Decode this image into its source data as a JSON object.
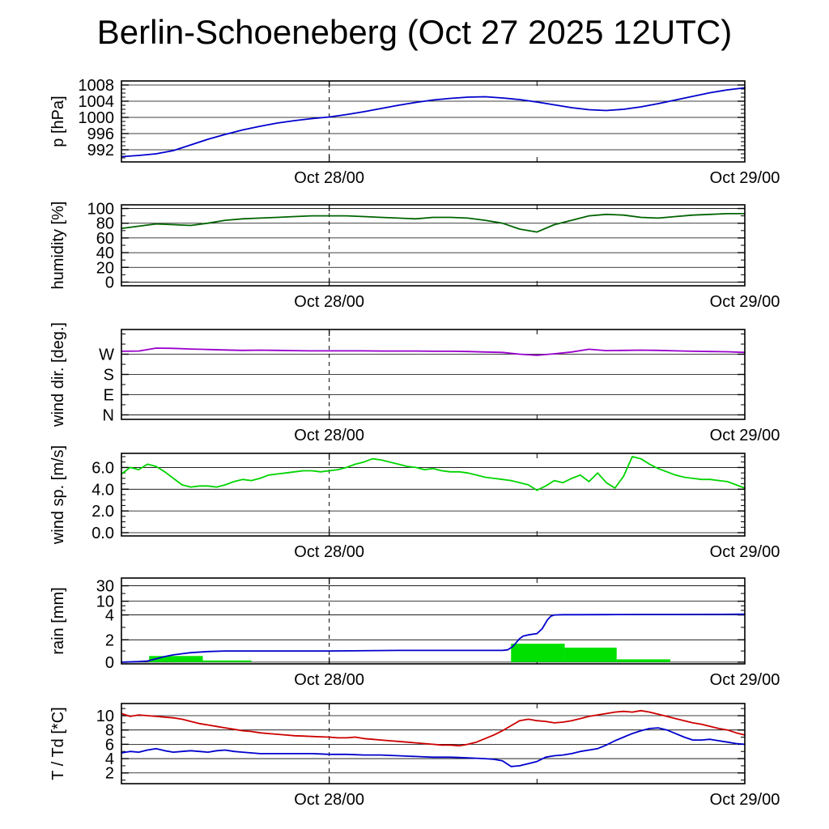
{
  "title": "Berlin-Schoeneberg (Oct 27 2025 12UTC)",
  "chart_data": {
    "type": "line",
    "station": "Berlin-Schoeneberg",
    "run_label": "Oct 27 2025 12UTC",
    "x_axis": {
      "range": [
        0,
        36
      ],
      "unit": "hours since Oct 27 2025 12UTC",
      "ticks": [
        {
          "value": 12,
          "label": "Oct 28/00",
          "dashed_line": true
        },
        {
          "value": 36,
          "label": "Oct 29/00"
        }
      ],
      "minor_ticks": [
        24
      ]
    },
    "panels": [
      {
        "id": "pressure",
        "ylabel": "p [hPa]",
        "ylim": [
          989,
          1009
        ],
        "yticks": [
          {
            "value": 992,
            "label": "992"
          },
          {
            "value": 996,
            "label": "996"
          },
          {
            "value": 1000,
            "label": "1000"
          },
          {
            "value": 1004,
            "label": "1004"
          },
          {
            "value": 1008,
            "label": "1008"
          }
        ],
        "yminor_step": 1,
        "series": [
          {
            "name": "pressure",
            "color": "#0000cd",
            "x_start": 0,
            "x_step": 1,
            "values": [
              990.3,
              990.6,
              991.0,
              991.8,
              993.2,
              994.6,
              995.8,
              996.9,
              997.8,
              998.6,
              999.2,
              999.7,
              1000.1,
              1000.7,
              1001.4,
              1002.2,
              1003.0,
              1003.7,
              1004.3,
              1004.7,
              1005.0,
              1005.1,
              1004.8,
              1004.4,
              1003.8,
              1003.1,
              1002.4,
              1001.9,
              1001.7,
              1002.0,
              1002.6,
              1003.4,
              1004.3,
              1005.2,
              1006.1,
              1006.8,
              1007.3
            ]
          }
        ]
      },
      {
        "id": "humidity",
        "ylabel": "humidity [%]",
        "ylim": [
          -5,
          105
        ],
        "yticks": [
          {
            "value": 0,
            "label": "0"
          },
          {
            "value": 20,
            "label": "20"
          },
          {
            "value": 40,
            "label": "40"
          },
          {
            "value": 60,
            "label": "60"
          },
          {
            "value": 80,
            "label": "80"
          },
          {
            "value": 100,
            "label": "100"
          }
        ],
        "yminor_step": 10,
        "series": [
          {
            "name": "humidity",
            "color": "#006400",
            "x_start": 0,
            "x_step": 1,
            "values": [
              73,
              76,
              79,
              78,
              77,
              80,
              84,
              86,
              87,
              88,
              89,
              90,
              90,
              90,
              89,
              88,
              87,
              86,
              88,
              88,
              87,
              84,
              80,
              72,
              68,
              78,
              84,
              90,
              92,
              91,
              88,
              87,
              89,
              91,
              92,
              93,
              93
            ]
          }
        ]
      },
      {
        "id": "wind_direction",
        "ylabel": "wind dir. [deg.]",
        "ylim": [
          -20,
          380
        ],
        "yticks": [
          {
            "value": 0,
            "label": "N"
          },
          {
            "value": 90,
            "label": "E"
          },
          {
            "value": 180,
            "label": "S"
          },
          {
            "value": 270,
            "label": "W"
          }
        ],
        "yminor_step": 45,
        "series": [
          {
            "name": "wind_direction",
            "color": "#9900cc",
            "x_start": 0,
            "x_step": 1,
            "values": [
              283,
              284,
              297,
              296,
              293,
              291,
              289,
              287,
              288,
              287,
              286,
              285,
              285,
              285,
              285,
              284,
              284,
              284,
              283,
              283,
              282,
              280,
              278,
              270,
              265,
              272,
              280,
              292,
              286,
              287,
              288,
              287,
              285,
              283,
              282,
              281,
              278
            ]
          }
        ]
      },
      {
        "id": "wind_speed",
        "ylabel": "wind sp. [m/s]",
        "ylim": [
          -0.3,
          7.3
        ],
        "yticks": [
          {
            "value": 0,
            "label": "0.0"
          },
          {
            "value": 2,
            "label": "2.0"
          },
          {
            "value": 4,
            "label": "4.0"
          },
          {
            "value": 6,
            "label": "6.0"
          }
        ],
        "yminor_step": 0.5,
        "series": [
          {
            "name": "wind_speed",
            "color": "#00d400",
            "x_start": 0,
            "x_step": 0.5,
            "values": [
              5.4,
              6.0,
              5.8,
              6.3,
              6.1,
              5.6,
              5.0,
              4.4,
              4.2,
              4.3,
              4.3,
              4.2,
              4.4,
              4.7,
              4.9,
              4.8,
              5.0,
              5.3,
              5.4,
              5.5,
              5.6,
              5.7,
              5.7,
              5.6,
              5.7,
              5.8,
              6.0,
              6.3,
              6.5,
              6.8,
              6.7,
              6.5,
              6.3,
              6.1,
              6.0,
              5.8,
              5.9,
              5.7,
              5.6,
              5.6,
              5.5,
              5.3,
              5.1,
              5.0,
              4.9,
              4.8,
              4.6,
              4.4,
              3.9,
              4.3,
              4.8,
              4.6,
              5.0,
              5.3,
              4.7,
              5.5,
              4.6,
              4.1,
              5.2,
              7.0,
              6.8,
              6.3,
              5.9,
              5.6,
              5.3,
              5.1,
              5.0,
              4.9,
              4.9,
              4.8,
              4.7,
              4.4,
              4.1
            ]
          }
        ]
      },
      {
        "id": "rain",
        "ylabel": "rain [mm]",
        "ylim": [
          0,
          35
        ],
        "scale_points": [
          [
            0,
            0.02
          ],
          [
            2,
            0.28
          ],
          [
            4,
            0.57
          ],
          [
            10,
            0.73
          ],
          [
            30,
            0.91
          ]
        ],
        "yticks": [
          {
            "value": 0,
            "label": "0"
          },
          {
            "value": 2,
            "label": "2"
          },
          {
            "value": 4,
            "label": "4"
          },
          {
            "value": 10,
            "label": "10"
          },
          {
            "value": 30,
            "label": "30"
          }
        ],
        "yminor_values": [
          1,
          3,
          6,
          8,
          20
        ],
        "bar_color": "#00e000",
        "bars": [
          {
            "x0": 1.6,
            "x1": 4.7,
            "value": 0.55
          },
          {
            "x0": 4.7,
            "x1": 7.5,
            "value": 0.15
          },
          {
            "x0": 22.5,
            "x1": 25.6,
            "value": 1.65
          },
          {
            "x0": 25.6,
            "x1": 28.6,
            "value": 1.3
          },
          {
            "x0": 28.6,
            "x1": 31.7,
            "value": 0.25
          }
        ],
        "series": [
          {
            "name": "rain_accumulated",
            "color": "#0000cd",
            "x": [
              0,
              1,
              1.5,
              2,
              2.5,
              3,
              3.5,
              4,
              5,
              6,
              8,
              12,
              16,
              20,
              22,
              22.3,
              22.6,
              23,
              23.2,
              23.5,
              24,
              24.3,
              24.6,
              24.8,
              25,
              25.5,
              26,
              28,
              30,
              32,
              34,
              36
            ],
            "values": [
              0,
              0.05,
              0.1,
              0.3,
              0.5,
              0.65,
              0.75,
              0.85,
              0.95,
              1.0,
              1.0,
              1.0,
              1.05,
              1.05,
              1.05,
              1.1,
              1.4,
              2.1,
              2.3,
              2.4,
              2.5,
              2.9,
              3.6,
              3.9,
              4.0,
              4.1,
              4.1,
              4.15,
              4.2,
              4.2,
              4.25,
              4.3
            ]
          }
        ]
      },
      {
        "id": "temperature",
        "ylabel": "T / Td [*C]",
        "ylim": [
          0.5,
          11.7
        ],
        "yticks": [
          {
            "value": 2,
            "label": "2"
          },
          {
            "value": 4,
            "label": "4"
          },
          {
            "value": 6,
            "label": "6"
          },
          {
            "value": 8,
            "label": "8"
          },
          {
            "value": 10,
            "label": "10"
          }
        ],
        "yminor_step": 1,
        "series": [
          {
            "name": "temperature",
            "color": "#cc0000",
            "x_start": 0,
            "x_step": 0.5,
            "values": [
              10.3,
              9.9,
              10.1,
              10.0,
              9.9,
              9.8,
              9.7,
              9.5,
              9.2,
              8.9,
              8.7,
              8.5,
              8.3,
              8.1,
              7.9,
              7.8,
              7.6,
              7.5,
              7.4,
              7.3,
              7.2,
              7.15,
              7.1,
              7.05,
              7.0,
              6.9,
              6.9,
              7.0,
              6.8,
              6.7,
              6.6,
              6.5,
              6.4,
              6.3,
              6.2,
              6.1,
              6.0,
              5.9,
              5.9,
              5.8,
              6.0,
              6.3,
              6.8,
              7.3,
              7.9,
              8.6,
              9.3,
              9.5,
              9.3,
              9.2,
              9.0,
              9.1,
              9.3,
              9.6,
              9.9,
              10.1,
              10.3,
              10.5,
              10.6,
              10.5,
              10.7,
              10.5,
              10.2,
              9.9,
              9.6,
              9.3,
              9.0,
              8.8,
              8.5,
              8.2,
              8.0,
              7.6,
              7.3
            ]
          },
          {
            "name": "dew_point",
            "color": "#0000cd",
            "x_start": 0,
            "x_step": 0.5,
            "values": [
              4.8,
              5.0,
              4.9,
              5.2,
              5.4,
              5.1,
              4.9,
              5.0,
              5.1,
              5.0,
              4.9,
              5.1,
              5.2,
              5.0,
              4.9,
              4.8,
              4.7,
              4.7,
              4.7,
              4.7,
              4.7,
              4.7,
              4.7,
              4.65,
              4.6,
              4.6,
              4.6,
              4.55,
              4.5,
              4.5,
              4.5,
              4.45,
              4.4,
              4.35,
              4.3,
              4.25,
              4.2,
              4.2,
              4.2,
              4.15,
              4.1,
              4.05,
              4.0,
              3.9,
              3.7,
              2.9,
              3.0,
              3.3,
              3.6,
              4.2,
              4.4,
              4.5,
              4.7,
              5.0,
              5.2,
              5.4,
              5.9,
              6.5,
              7.0,
              7.5,
              7.9,
              8.2,
              8.3,
              8.0,
              7.5,
              7.0,
              6.6,
              6.6,
              6.7,
              6.5,
              6.3,
              6.1,
              6.0
            ]
          }
        ]
      }
    ]
  }
}
